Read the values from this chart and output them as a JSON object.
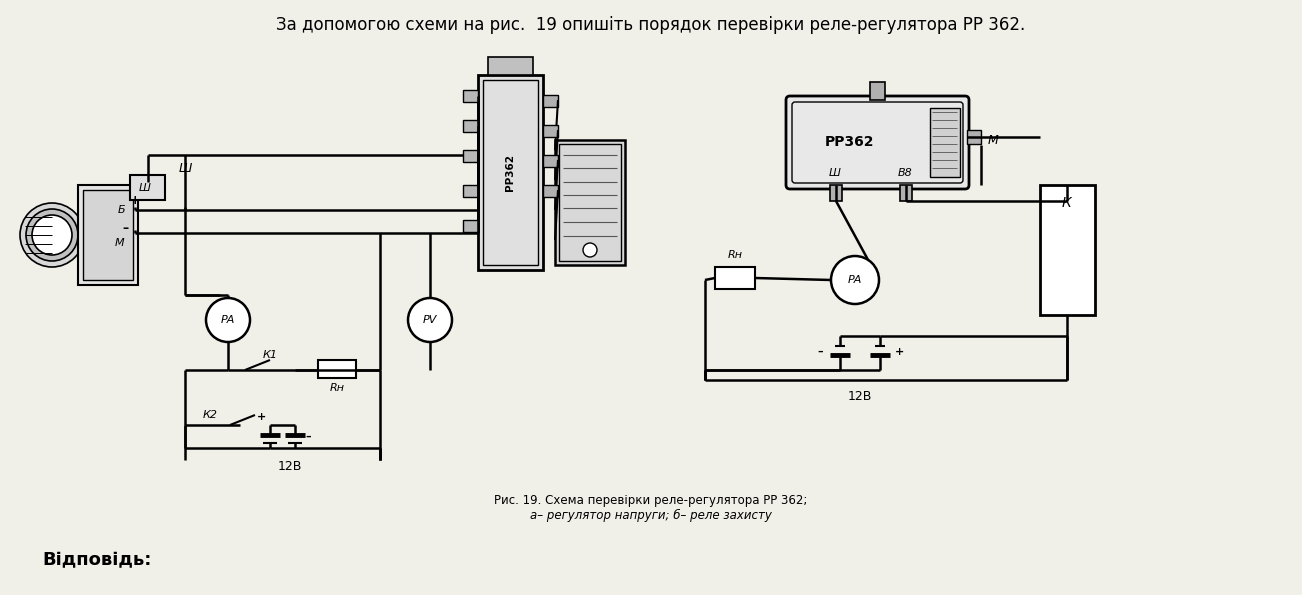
{
  "bg_color": "#f0efe8",
  "title_text": "За допомогою схеми на рис.  19 опишіть порядок перевірки реле-регулятора РР 362.",
  "caption_line1": "Рис. 19. Схема перевірки реле-регулятора РР 362;",
  "caption_line2": "а– регулятор напруги; б– реле захисту",
  "footer_text": "Відповідь:",
  "title_fontsize": 12,
  "caption_fontsize": 8.5,
  "footer_fontsize": 13
}
